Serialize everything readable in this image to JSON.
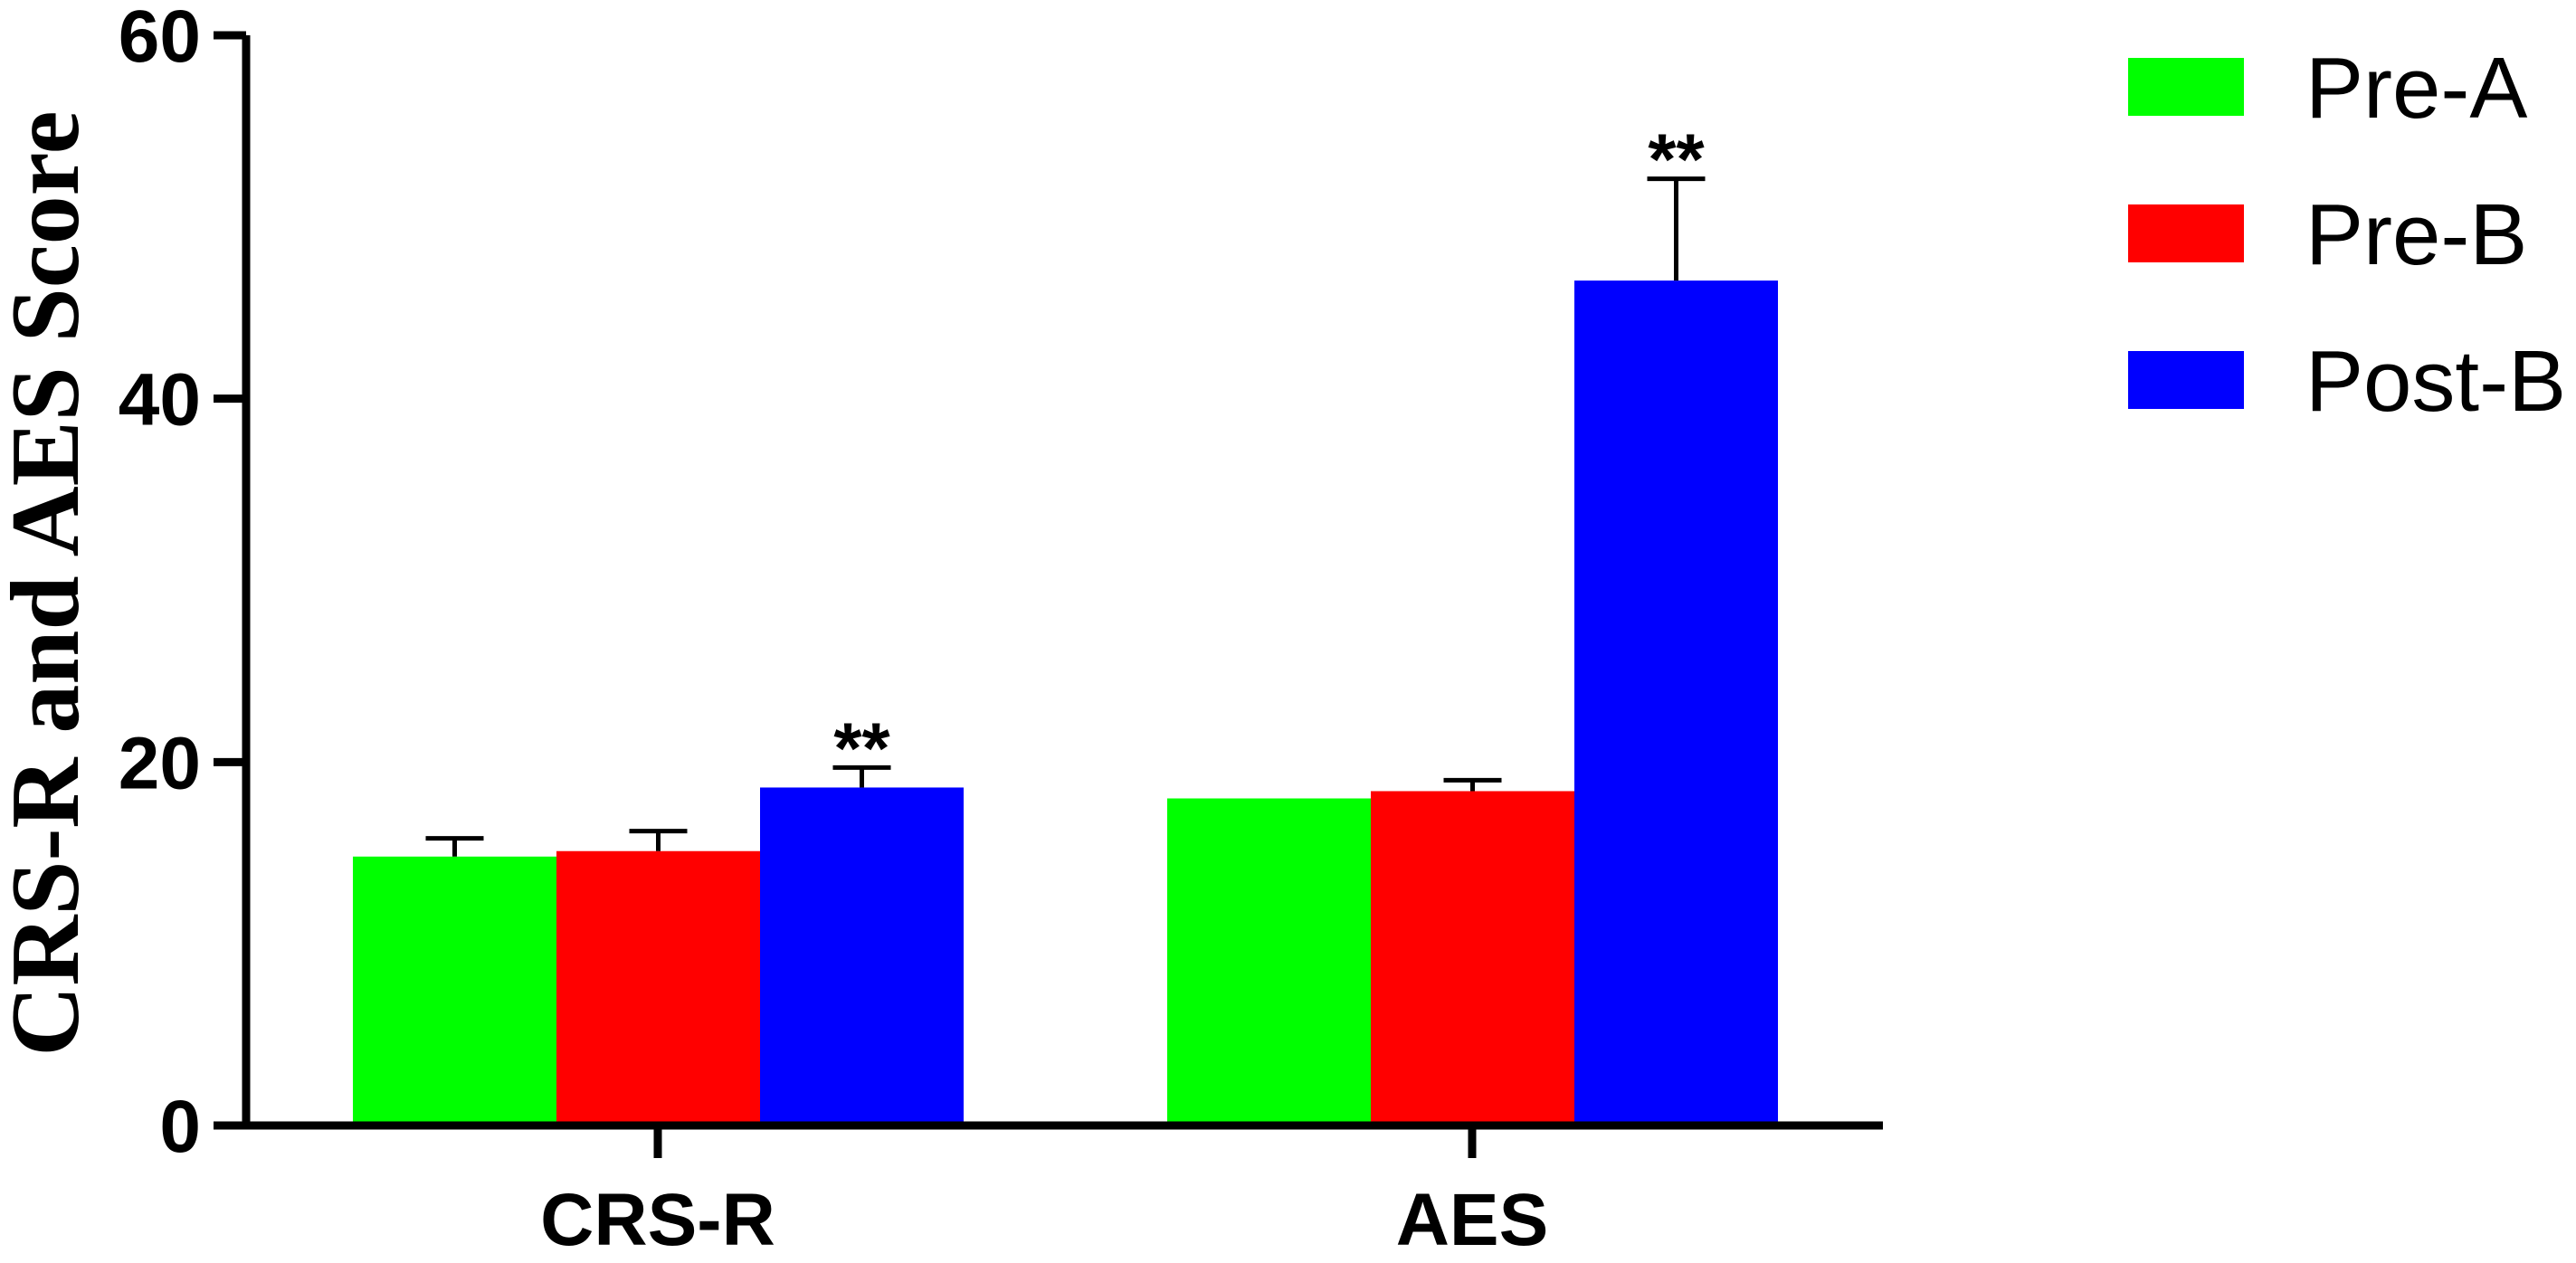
{
  "chart_data": {
    "type": "bar",
    "ylabel": "CRS-R and AES Score",
    "xlabel": "",
    "ylim": [
      0,
      60
    ],
    "yticks": [
      "0",
      "20",
      "40",
      "60"
    ],
    "categories": [
      "CRS-R",
      "AES"
    ],
    "series": [
      {
        "name": "Pre-A",
        "color": "#00ff00",
        "values": [
          14.8,
          18.0
        ],
        "errors": [
          1.0,
          0.0
        ],
        "significance": [
          "",
          ""
        ]
      },
      {
        "name": "Pre-B",
        "color": "#ff0000",
        "values": [
          15.1,
          18.4
        ],
        "errors": [
          1.1,
          0.6
        ],
        "significance": [
          "",
          ""
        ]
      },
      {
        "name": "Post-B",
        "color": "#0000ff",
        "values": [
          18.6,
          46.5
        ],
        "errors": [
          1.1,
          5.6
        ],
        "significance": [
          "**",
          "**"
        ]
      }
    ],
    "grid": false,
    "legend_position": "top-right"
  }
}
